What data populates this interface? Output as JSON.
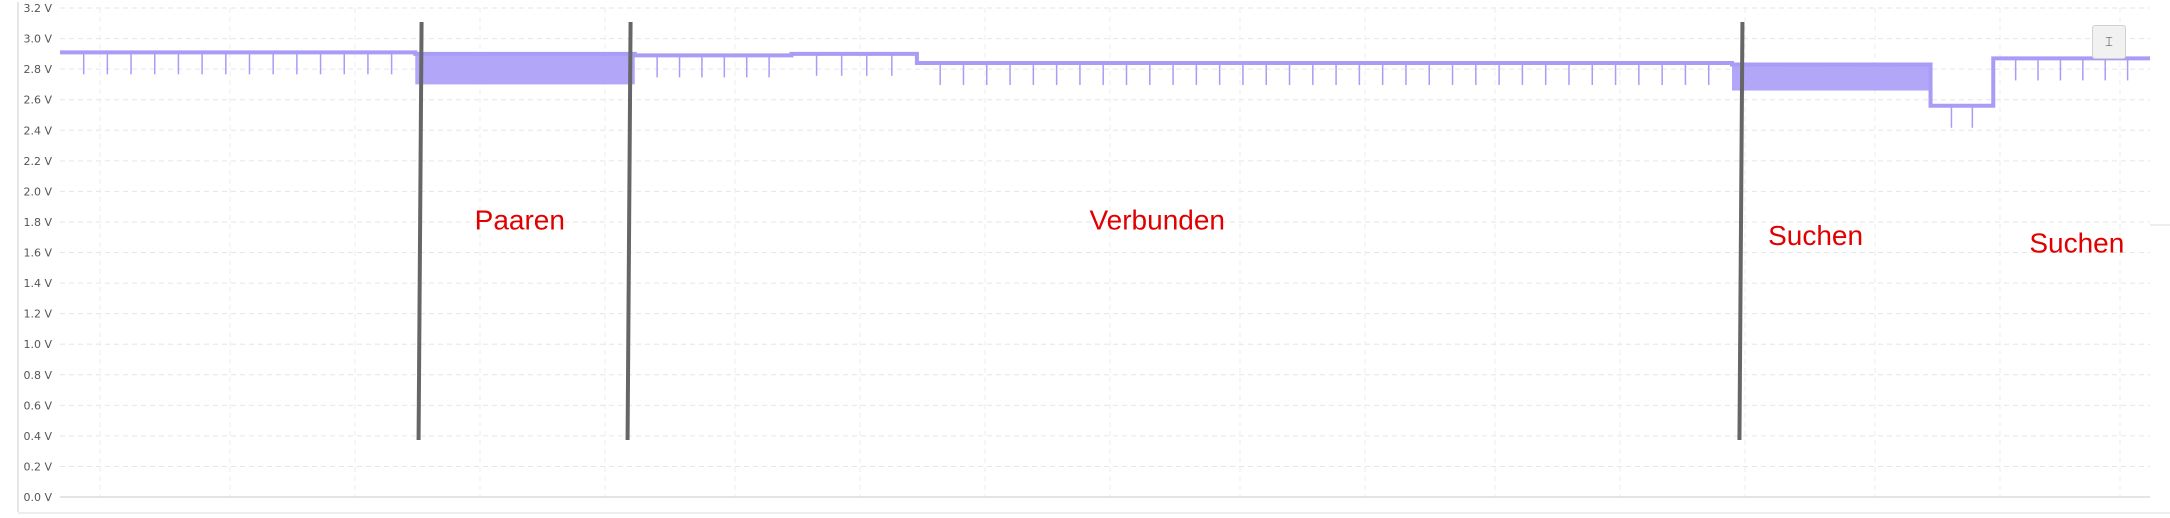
{
  "chart_data": {
    "type": "line",
    "title": "",
    "xlabel": "",
    "ylabel": "",
    "ylim": [
      0,
      3.2
    ],
    "y_ticks": [
      "0.0 V",
      "0.2 V",
      "0.4 V",
      "0.6 V",
      "0.8 V",
      "1.0 V",
      "1.2 V",
      "1.4 V",
      "1.6 V",
      "1.8 V",
      "2.0 V",
      "2.2 V",
      "2.4 V",
      "2.6 V",
      "2.8 V",
      "3.0 V",
      "3.2 V"
    ],
    "x_ticks": [],
    "grid": true,
    "legend": "none",
    "series": [
      {
        "color": "#a89cf7",
        "segments": [
          {
            "x": [
              0,
              17
            ],
            "mean": 2.91
          },
          {
            "x": [
              17,
              27.5
            ],
            "mean": 2.8,
            "band": [
              2.7,
              2.9
            ]
          },
          {
            "x": [
              27.5,
              35
            ],
            "mean": 2.89
          },
          {
            "x": [
              35,
              41
            ],
            "mean": 2.9
          },
          {
            "x": [
              41,
              80
            ],
            "mean": 2.84
          },
          {
            "x": [
              80,
              89.5
            ],
            "mean": 2.74,
            "band": [
              2.66,
              2.83
            ]
          },
          {
            "x": [
              89.5,
              92.5
            ],
            "mean": 2.56
          },
          {
            "x": [
              92.5,
              100
            ],
            "mean": 2.87
          }
        ]
      }
    ],
    "markers": [
      17.3,
      27.3,
      80.5
    ],
    "annotations": [
      {
        "text": "Paaren",
        "x": 22,
        "y": 1.75
      },
      {
        "text": "Verbunden",
        "x": 52.5,
        "y": 1.75
      },
      {
        "text": "Suchen",
        "x": 84,
        "y": 1.65
      },
      {
        "text": "Suchen",
        "x": 96.5,
        "y": 1.6
      }
    ]
  },
  "toolbar": {
    "scale_icon": "fit-vertical-icon",
    "scale_glyph": "⌶"
  }
}
